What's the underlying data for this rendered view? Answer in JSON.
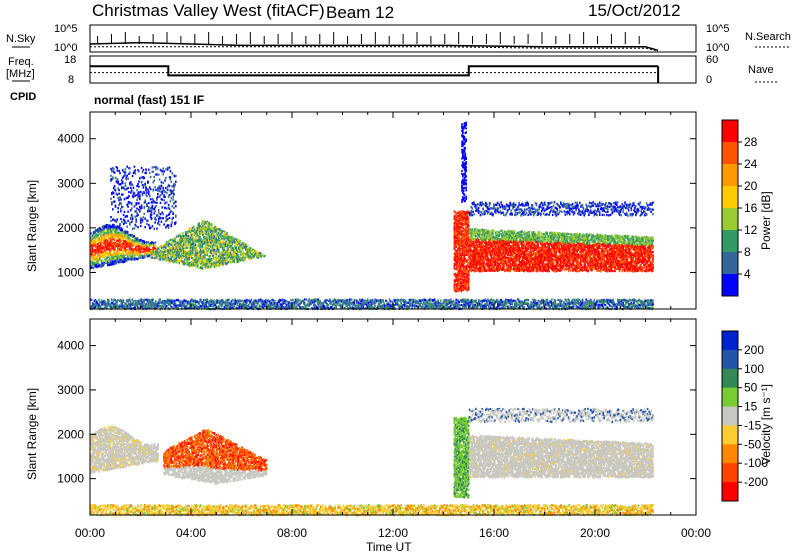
{
  "header": {
    "station": "Christmas Valley West (fitACF)",
    "beam": "Beam 12",
    "date": "15/Oct/2012"
  },
  "panels": {
    "nsky_label": "N.Sky",
    "nsearch_label": "N.Search",
    "nsky_ticks": [
      "10^5",
      "10^0"
    ],
    "nsearch_ticks": [
      "10^5",
      "10^0"
    ],
    "freq_label_line1": "Freq.",
    "freq_label_line2": "[MHz]",
    "freq_ticks": [
      "18",
      "8"
    ],
    "nave_label": "Nave",
    "nave_ticks": [
      "60",
      "0"
    ],
    "cpid_label": "CPID",
    "cpid_text": "normal (fast) 151 IF"
  },
  "chart_data": [
    {
      "type": "line",
      "name_panel": "noise",
      "x": [
        "00:00",
        "02:00",
        "04:00",
        "06:00",
        "08:00",
        "10:00",
        "12:00",
        "14:00",
        "16:00",
        "18:00",
        "20:00",
        "22:00",
        "22:30"
      ],
      "series": [
        {
          "name": "N.Sky",
          "values": [
            0.5,
            0.6,
            0.5,
            0.4,
            0.4,
            0.4,
            0.4,
            0.4,
            0.35,
            0.3,
            0.3,
            0.3,
            0.05
          ]
        },
        {
          "name": "N.Search",
          "values": [
            0.3,
            0.3,
            0.3,
            0.3,
            0.3,
            0.3,
            0.3,
            0.3,
            0.25,
            0.2,
            0.2,
            0.2,
            0.0
          ]
        }
      ]
    },
    {
      "type": "line",
      "name_panel": "freq",
      "x_hours": [
        0,
        3.1,
        3.1,
        15.0,
        15.0,
        22.5
      ],
      "series": [
        {
          "name": "Freq.",
          "values": [
            14.2,
            14.2,
            10.8,
            10.8,
            14.2,
            14.2
          ]
        },
        {
          "name": "Nave",
          "values": [
            23,
            23,
            23,
            23,
            23,
            23
          ]
        }
      ],
      "ylim": [
        8,
        18
      ]
    },
    {
      "type": "heatmap",
      "name_panel": "power",
      "xlabel": "",
      "ylabel": "Slant Range [km]",
      "xlim_hours": [
        0,
        24
      ],
      "ylim": [
        180,
        4600
      ],
      "yticks": [
        1000,
        2000,
        3000,
        4000
      ],
      "colorbar": {
        "label": "Power [dB]",
        "ticks": [
          "28",
          "24",
          "20",
          "16",
          "12",
          "8",
          "4"
        ],
        "colors": [
          "#ff0000",
          "#ff5500",
          "#ff9900",
          "#ffcc00",
          "#99cc33",
          "#339966",
          "#336699",
          "#0000ff"
        ]
      }
    },
    {
      "type": "heatmap",
      "name_panel": "velocity",
      "xlabel": "Time UT",
      "ylabel": "Slant Range [km]",
      "xlim_hours": [
        0,
        24
      ],
      "ylim": [
        180,
        4600
      ],
      "yticks": [
        1000,
        2000,
        3000,
        4000
      ],
      "xticks": [
        "00:00",
        "04:00",
        "08:00",
        "12:00",
        "16:00",
        "20:00",
        "00:00"
      ],
      "colorbar": {
        "label": "Velocity [m s⁻¹]",
        "ticks": [
          "200",
          "100",
          "50",
          "15",
          "-15",
          "-50",
          "-100",
          "-200"
        ],
        "colors": [
          "#0022cc",
          "#2255aa",
          "#338855",
          "#77cc33",
          "#c8c8c0",
          "#ffcc33",
          "#ff8800",
          "#ff4400",
          "#ff0000"
        ]
      }
    }
  ]
}
